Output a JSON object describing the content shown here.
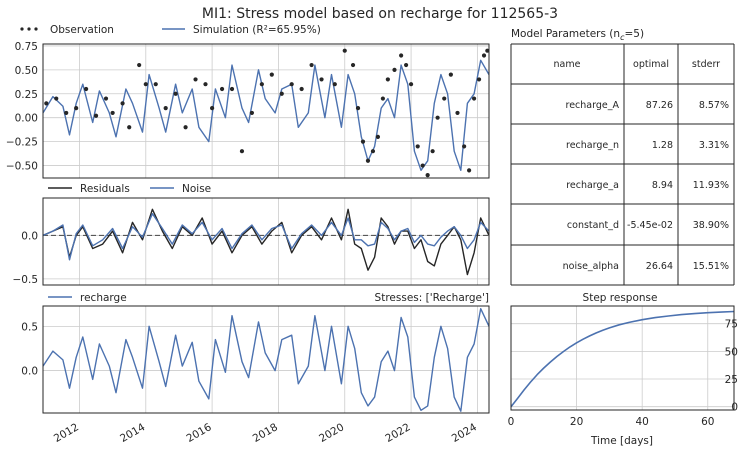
{
  "figure": {
    "title": "MI1: Stress model based on recharge for 112565-3"
  },
  "colors": {
    "observation": "#262626",
    "simulation": "#4c72b0",
    "residuals": "#262626",
    "noise": "#4c72b0",
    "recharge": "#4c72b0",
    "step": "#4c72b0",
    "grid": "#cccccc",
    "frame": "#262626"
  },
  "chart_data": [
    {
      "id": "main",
      "type": "line",
      "legend": [
        "Observation",
        "Simulation (R²=65.95%)"
      ],
      "legend_placement": "top-left outside",
      "x_range": [
        2010.9,
        2024.35
      ],
      "ylim": [
        -0.63,
        0.77
      ],
      "yticks": [
        0.75,
        0.5,
        0.25,
        0.0,
        -0.25,
        -0.5
      ],
      "ytick_labels": [
        "0.75",
        "0.50",
        "0.25",
        "0.00",
        "−0.25",
        "−0.50"
      ],
      "grid": true,
      "series": [
        {
          "name": "Simulation (R²=65.95%)",
          "kind": "line",
          "x": [
            2010.9,
            2011.2,
            2011.5,
            2011.7,
            2011.9,
            2012.1,
            2012.4,
            2012.6,
            2012.9,
            2013.1,
            2013.4,
            2013.6,
            2013.9,
            2014.1,
            2014.4,
            2014.6,
            2014.9,
            2015.1,
            2015.4,
            2015.6,
            2015.9,
            2016.1,
            2016.4,
            2016.6,
            2016.9,
            2017.1,
            2017.4,
            2017.6,
            2017.9,
            2018.1,
            2018.4,
            2018.6,
            2018.9,
            2019.1,
            2019.4,
            2019.6,
            2019.9,
            2020.1,
            2020.3,
            2020.5,
            2020.7,
            2020.9,
            2021.1,
            2021.3,
            2021.5,
            2021.7,
            2021.9,
            2022.1,
            2022.3,
            2022.5,
            2022.7,
            2022.9,
            2023.1,
            2023.3,
            2023.5,
            2023.7,
            2023.9,
            2024.1,
            2024.35
          ],
          "y": [
            0.05,
            0.22,
            0.12,
            -0.18,
            0.15,
            0.35,
            -0.05,
            0.28,
            0.05,
            -0.2,
            0.3,
            0.15,
            -0.15,
            0.45,
            0.1,
            -0.15,
            0.35,
            0.05,
            0.3,
            -0.1,
            -0.25,
            0.3,
            0.0,
            0.55,
            0.1,
            -0.05,
            0.5,
            0.2,
            0.05,
            0.3,
            0.35,
            -0.1,
            0.05,
            0.55,
            0.0,
            0.45,
            -0.1,
            0.45,
            0.25,
            -0.2,
            -0.45,
            -0.3,
            0.1,
            0.2,
            0.0,
            0.55,
            0.35,
            -0.35,
            -0.55,
            -0.45,
            0.15,
            0.45,
            0.25,
            -0.35,
            -0.55,
            0.15,
            0.25,
            0.6,
            0.45
          ]
        },
        {
          "name": "Observation",
          "kind": "scatter",
          "x": [
            2011.0,
            2011.3,
            2011.6,
            2011.9,
            2012.2,
            2012.5,
            2012.8,
            2013.0,
            2013.3,
            2013.5,
            2013.8,
            2014.0,
            2014.3,
            2014.6,
            2014.9,
            2015.2,
            2015.5,
            2015.8,
            2016.0,
            2016.3,
            2016.6,
            2016.9,
            2017.2,
            2017.5,
            2017.8,
            2018.1,
            2018.4,
            2018.7,
            2019.0,
            2019.3,
            2019.7,
            2020.0,
            2020.25,
            2020.4,
            2020.55,
            2020.7,
            2020.85,
            2021.0,
            2021.15,
            2021.3,
            2021.5,
            2021.7,
            2021.85,
            2022.0,
            2022.2,
            2022.35,
            2022.5,
            2022.65,
            2022.8,
            2023.0,
            2023.2,
            2023.4,
            2023.6,
            2023.75,
            2023.9,
            2024.05,
            2024.2,
            2024.3
          ],
          "y": [
            0.15,
            0.2,
            0.05,
            0.1,
            0.3,
            0.02,
            0.2,
            0.05,
            0.15,
            -0.1,
            0.55,
            0.35,
            0.35,
            0.1,
            0.25,
            -0.1,
            0.4,
            0.35,
            0.1,
            0.3,
            0.3,
            -0.35,
            0.05,
            0.35,
            0.45,
            0.25,
            0.35,
            0.3,
            0.55,
            0.4,
            0.35,
            0.7,
            0.55,
            0.1,
            -0.25,
            -0.45,
            -0.35,
            -0.2,
            0.2,
            0.4,
            0.5,
            0.65,
            0.55,
            0.35,
            -0.3,
            -0.5,
            -0.6,
            -0.35,
            0.0,
            0.2,
            0.45,
            0.05,
            -0.3,
            -0.55,
            0.2,
            0.4,
            0.65,
            0.7
          ]
        }
      ]
    },
    {
      "id": "residuals",
      "type": "line",
      "legend": [
        "Residuals",
        "Noise"
      ],
      "legend_placement": "top-left outside",
      "x_range": [
        2010.9,
        2024.35
      ],
      "ylim": [
        -0.57,
        0.43
      ],
      "yticks": [
        0.0,
        -0.5
      ],
      "ytick_labels": [
        "0.0",
        "−0.5"
      ],
      "zero_line": true,
      "grid": true,
      "series": [
        {
          "name": "Residuals",
          "x": [
            2010.9,
            2011.2,
            2011.5,
            2011.7,
            2011.9,
            2012.1,
            2012.4,
            2012.7,
            2013.0,
            2013.3,
            2013.6,
            2013.9,
            2014.2,
            2014.5,
            2014.8,
            2015.1,
            2015.4,
            2015.7,
            2016.0,
            2016.3,
            2016.6,
            2016.9,
            2017.2,
            2017.5,
            2017.8,
            2018.1,
            2018.4,
            2018.7,
            2019.0,
            2019.3,
            2019.6,
            2019.9,
            2020.1,
            2020.3,
            2020.5,
            2020.7,
            2020.9,
            2021.1,
            2021.3,
            2021.5,
            2021.7,
            2021.9,
            2022.1,
            2022.3,
            2022.5,
            2022.7,
            2022.9,
            2023.1,
            2023.3,
            2023.5,
            2023.7,
            2023.9,
            2024.1,
            2024.35
          ],
          "y": [
            0.0,
            0.05,
            0.1,
            -0.25,
            0.0,
            0.1,
            -0.15,
            -0.1,
            0.05,
            -0.2,
            0.15,
            -0.05,
            0.3,
            0.05,
            -0.15,
            0.1,
            0.0,
            0.2,
            -0.1,
            0.05,
            -0.2,
            0.0,
            0.1,
            -0.1,
            0.05,
            0.15,
            -0.2,
            0.0,
            0.1,
            -0.05,
            0.2,
            -0.05,
            0.3,
            -0.1,
            -0.15,
            -0.4,
            -0.25,
            0.2,
            0.1,
            -0.1,
            0.05,
            0.05,
            -0.15,
            -0.05,
            -0.3,
            -0.35,
            -0.1,
            0.0,
            0.1,
            -0.05,
            -0.45,
            -0.2,
            0.2,
            0.0
          ]
        },
        {
          "name": "Noise",
          "x": [
            2010.9,
            2011.2,
            2011.5,
            2011.7,
            2011.9,
            2012.1,
            2012.4,
            2012.7,
            2013.0,
            2013.3,
            2013.6,
            2013.9,
            2014.2,
            2014.5,
            2014.8,
            2015.1,
            2015.4,
            2015.7,
            2016.0,
            2016.3,
            2016.6,
            2016.9,
            2017.2,
            2017.5,
            2017.8,
            2018.1,
            2018.4,
            2018.7,
            2019.0,
            2019.3,
            2019.6,
            2019.9,
            2020.1,
            2020.3,
            2020.5,
            2020.7,
            2020.9,
            2021.1,
            2021.3,
            2021.5,
            2021.7,
            2021.9,
            2022.1,
            2022.3,
            2022.5,
            2022.7,
            2022.9,
            2023.1,
            2023.3,
            2023.5,
            2023.7,
            2023.9,
            2024.1,
            2024.35
          ],
          "y": [
            0.0,
            0.05,
            0.12,
            -0.28,
            0.02,
            0.12,
            -0.12,
            -0.05,
            0.08,
            -0.15,
            0.1,
            -0.02,
            0.25,
            0.08,
            -0.1,
            0.12,
            0.02,
            0.15,
            -0.05,
            0.08,
            -0.15,
            0.02,
            0.12,
            -0.05,
            0.08,
            0.12,
            -0.15,
            0.02,
            0.12,
            0.0,
            0.15,
            0.0,
            0.2,
            -0.05,
            -0.05,
            -0.12,
            -0.1,
            0.15,
            0.08,
            -0.05,
            0.05,
            0.08,
            -0.08,
            0.0,
            -0.1,
            -0.12,
            -0.02,
            0.05,
            0.1,
            0.0,
            -0.15,
            -0.05,
            0.15,
            0.05
          ]
        }
      ]
    },
    {
      "id": "contribution",
      "type": "line",
      "legend": [
        "recharge"
      ],
      "legend_placement": "top-left outside",
      "annotation": "Stresses: ['Recharge']",
      "x_range": [
        2010.9,
        2024.35
      ],
      "ylim": [
        -0.48,
        0.73
      ],
      "yticks": [
        0.5,
        0.0
      ],
      "ytick_labels": [
        "0.5",
        "0.0"
      ],
      "xticks": [
        2012,
        2014,
        2016,
        2018,
        2020,
        2022,
        2024
      ],
      "xtick_labels": [
        "2012",
        "2014",
        "2016",
        "2018",
        "2020",
        "2022",
        "2024"
      ],
      "grid": true,
      "series": [
        {
          "name": "recharge",
          "x": [
            2010.9,
            2011.2,
            2011.5,
            2011.7,
            2011.9,
            2012.1,
            2012.4,
            2012.6,
            2012.9,
            2013.1,
            2013.4,
            2013.6,
            2013.9,
            2014.1,
            2014.4,
            2014.6,
            2014.9,
            2015.1,
            2015.4,
            2015.6,
            2015.9,
            2016.1,
            2016.4,
            2016.6,
            2016.9,
            2017.1,
            2017.4,
            2017.6,
            2017.9,
            2018.1,
            2018.4,
            2018.6,
            2018.9,
            2019.1,
            2019.4,
            2019.6,
            2019.9,
            2020.1,
            2020.3,
            2020.5,
            2020.7,
            2020.9,
            2021.1,
            2021.3,
            2021.5,
            2021.7,
            2021.9,
            2022.1,
            2022.3,
            2022.5,
            2022.7,
            2022.9,
            2023.1,
            2023.3,
            2023.5,
            2023.7,
            2023.9,
            2024.1,
            2024.35
          ],
          "y": [
            0.05,
            0.22,
            0.12,
            -0.2,
            0.15,
            0.38,
            -0.1,
            0.3,
            0.05,
            -0.25,
            0.35,
            0.15,
            -0.2,
            0.5,
            0.1,
            -0.18,
            0.4,
            0.05,
            0.32,
            -0.12,
            -0.32,
            0.35,
            -0.02,
            0.62,
            0.1,
            -0.08,
            0.55,
            0.2,
            0.0,
            0.35,
            0.4,
            -0.15,
            0.05,
            0.62,
            0.0,
            0.5,
            -0.15,
            0.5,
            0.25,
            -0.25,
            -0.4,
            -0.3,
            0.1,
            0.22,
            0.0,
            0.6,
            0.38,
            -0.3,
            -0.45,
            -0.4,
            0.15,
            0.5,
            0.25,
            -0.3,
            -0.46,
            0.15,
            0.3,
            0.7,
            0.5
          ]
        }
      ]
    },
    {
      "id": "step",
      "type": "line",
      "title": "Step response",
      "xlabel": "Time [days]",
      "xlim": [
        0,
        68
      ],
      "ylim": [
        -3,
        91
      ],
      "xticks": [
        0,
        20,
        40,
        60
      ],
      "yticks": [
        0,
        25,
        50,
        75
      ],
      "grid": true,
      "series": [
        {
          "name": "step",
          "x": [
            0,
            2,
            4,
            6,
            8,
            10,
            12,
            14,
            16,
            18,
            20,
            22,
            24,
            26,
            28,
            30,
            33,
            36,
            40,
            44,
            48,
            52,
            56,
            60,
            64,
            68
          ],
          "y": [
            0,
            7.5,
            15.2,
            22.4,
            29.0,
            35.0,
            40.4,
            45.4,
            49.9,
            54.0,
            57.7,
            61.0,
            64.0,
            66.7,
            69.1,
            71.2,
            74.0,
            76.2,
            78.6,
            80.5,
            82.0,
            83.2,
            84.1,
            84.9,
            85.5,
            86.0
          ]
        }
      ]
    }
  ],
  "params": {
    "title_main": "Model Parameters (n",
    "title_sub": "c",
    "title_end": "=5)",
    "headers": [
      "name",
      "optimal",
      "stderr"
    ],
    "rows": [
      {
        "name": "recharge_A",
        "optimal": "87.26",
        "stderr": "8.57%"
      },
      {
        "name": "recharge_n",
        "optimal": "1.28",
        "stderr": "3.31%"
      },
      {
        "name": "recharge_a",
        "optimal": "8.94",
        "stderr": "11.93%"
      },
      {
        "name": "constant_d",
        "optimal": "-5.45e-02",
        "stderr": "38.90%"
      },
      {
        "name": "noise_alpha",
        "optimal": "26.64",
        "stderr": "15.51%"
      }
    ]
  }
}
